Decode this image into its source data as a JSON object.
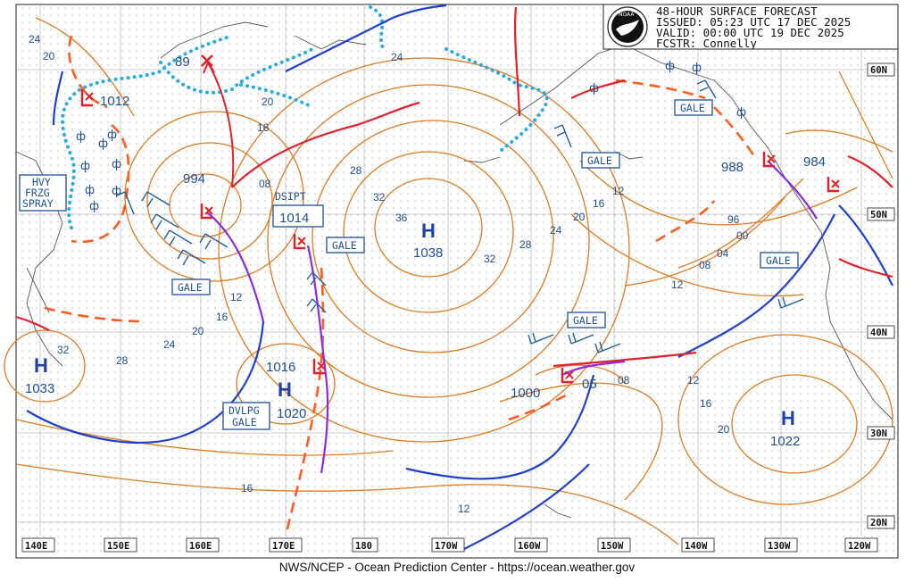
{
  "header": {
    "line1": "48-HOUR SURFACE FORECAST",
    "line2": "ISSUED: 05:23 UTC 17 DEC 2025",
    "line3": "VALID:  00:00 UTC 19 DEC 2025",
    "line4": "FCSTR:  Connelly",
    "logo_text": "NOAA"
  },
  "footer": "NWS/NCEP - Ocean Prediction Center - https://ocean.weather.gov",
  "lon_labels": [
    "140E",
    "150E",
    "160E",
    "170E",
    "180",
    "170W",
    "160W",
    "150W",
    "140W",
    "130W",
    "120W"
  ],
  "lat_labels": [
    "60N",
    "50N",
    "40N",
    "30N",
    "20N"
  ],
  "pressure_centers": [
    {
      "type": "L",
      "value": "1012"
    },
    {
      "type": "L",
      "value": "994"
    },
    {
      "type": "L",
      "value": "89"
    },
    {
      "type": "L",
      "value": "1014"
    },
    {
      "type": "L",
      "value": "1016"
    },
    {
      "type": "L",
      "value": "1000"
    },
    {
      "type": "L",
      "value": "05"
    },
    {
      "type": "L",
      "value": "988"
    },
    {
      "type": "L",
      "value": "984"
    },
    {
      "type": "H",
      "value": "1038"
    },
    {
      "type": "H",
      "value": "1033"
    },
    {
      "type": "H",
      "value": "1020"
    },
    {
      "type": "H",
      "value": "1022"
    }
  ],
  "warnings": {
    "hvy_frzg_spray": [
      "HVY",
      "FRZG",
      "SPRAY"
    ],
    "gale": "GALE",
    "dvlpg_gale": [
      "DVLPG",
      "GALE"
    ],
    "dsipt": "DSIPT"
  },
  "isobar_labels": [
    "24",
    "20",
    "20",
    "16",
    "08",
    "28",
    "32",
    "36",
    "28",
    "32",
    "24",
    "24",
    "20",
    "16",
    "12",
    "12",
    "20",
    "16",
    "12",
    "24",
    "28",
    "32",
    "16",
    "12",
    "16",
    "20",
    "08",
    "04",
    "96",
    "00",
    "08",
    "12",
    "08"
  ],
  "colors": {
    "isobar": "#e07a1f",
    "cold_front": "#1f3fd0",
    "warm_front": "#e0202a",
    "occluded_front": "#8a2be2",
    "ice_edge": "#29abe2",
    "trough": "#ff5a1f",
    "text_blue": "#1f4f8f"
  }
}
